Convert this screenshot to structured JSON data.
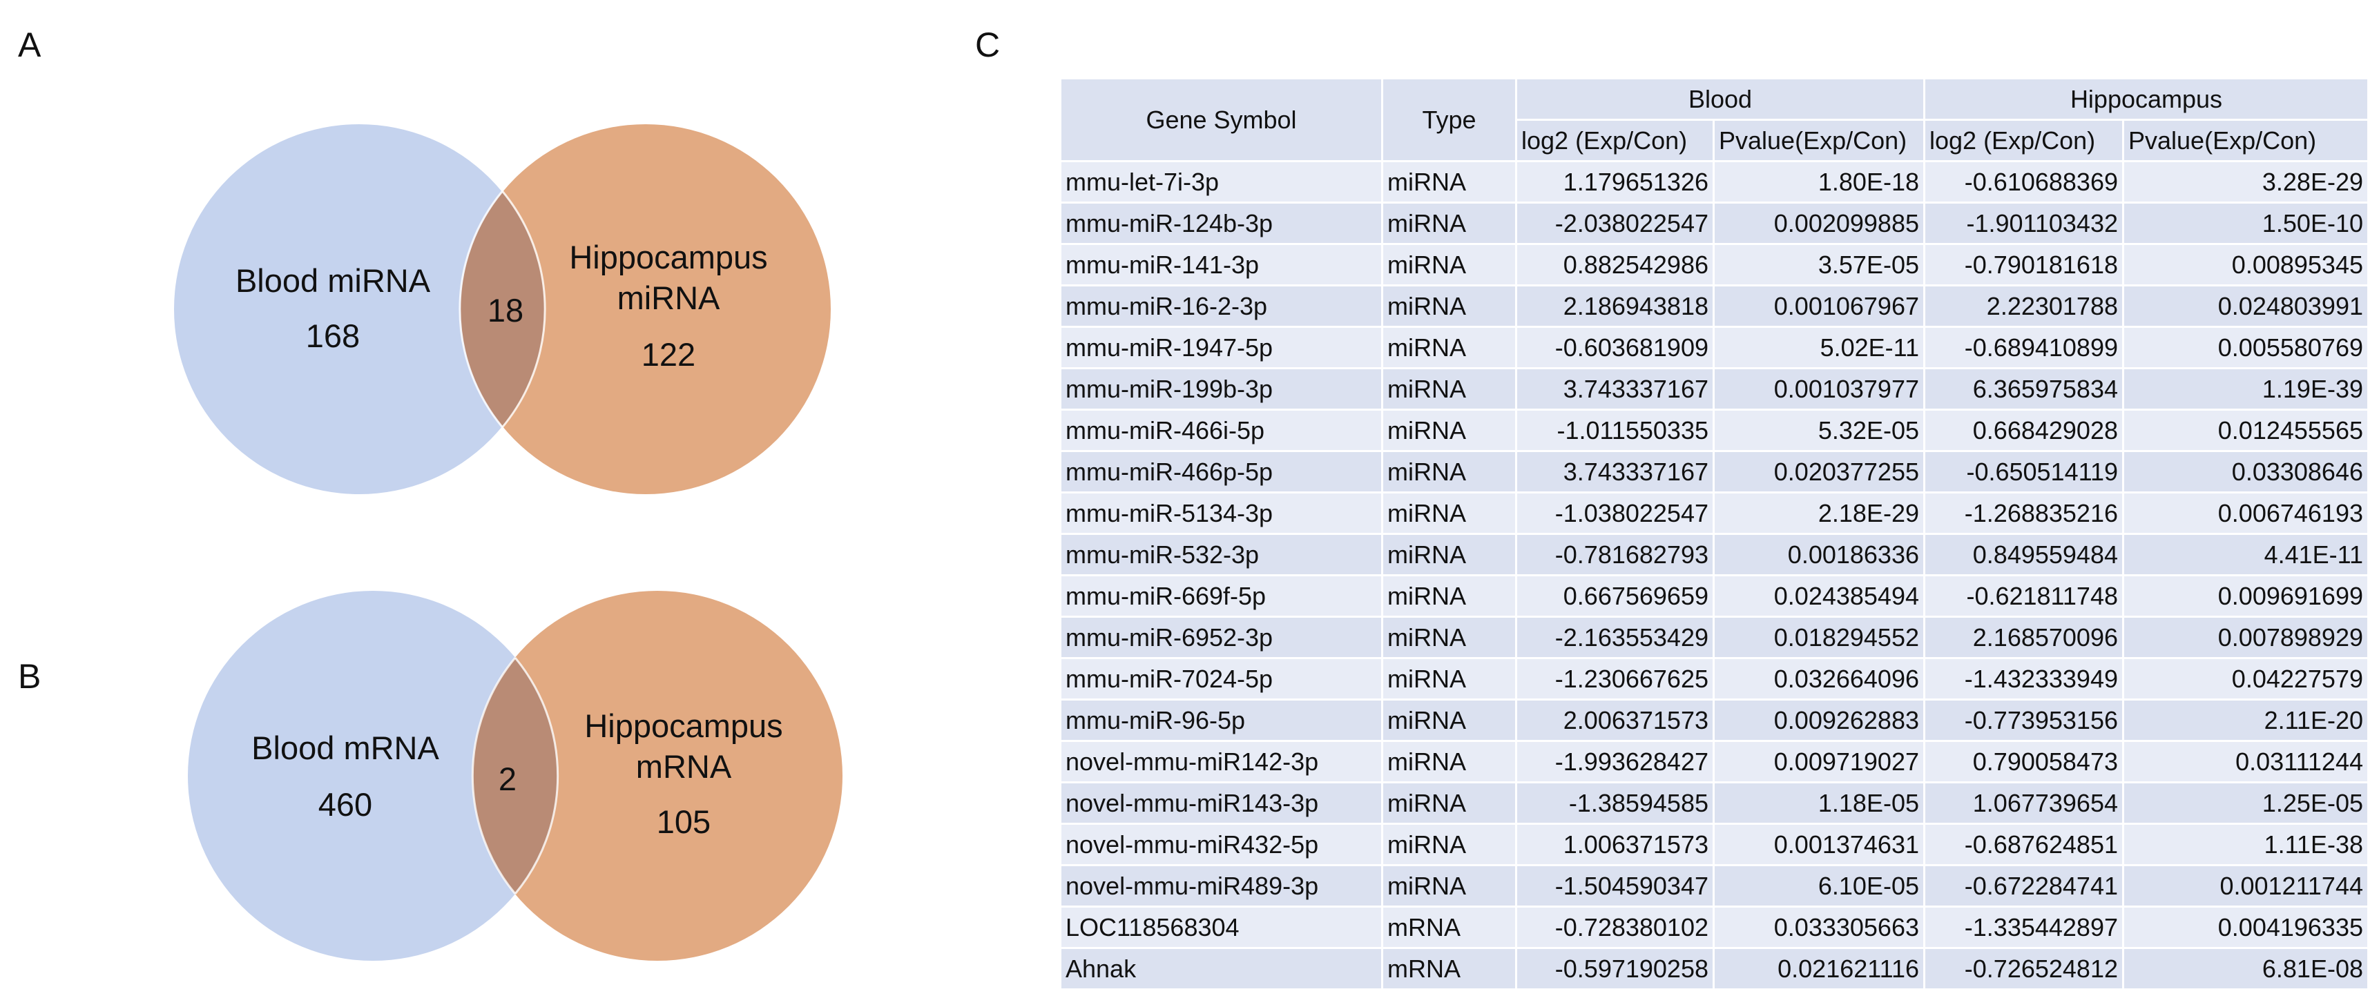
{
  "panels": {
    "a": "A",
    "b": "B",
    "c": "C"
  },
  "venn_a": {
    "left_label": "Blood miRNA",
    "left_count": "168",
    "overlap_count": "18",
    "right_label_line1": "Hippocampus",
    "right_label_line2": "miRNA",
    "right_count": "122",
    "left_color": "#c5d3ee",
    "right_color": "#e2aa82",
    "overlap_color": "#b98b75"
  },
  "venn_b": {
    "left_label": "Blood mRNA",
    "left_count": "460",
    "overlap_count": "2",
    "right_label_line1": "Hippocampus",
    "right_label_line2": "mRNA",
    "right_count": "105",
    "left_color": "#c5d3ee",
    "right_color": "#e2aa82",
    "overlap_color": "#b98b75"
  },
  "table": {
    "headers": {
      "gene": "Gene Symbol",
      "type": "Type",
      "blood": "Blood",
      "hippocampus": "Hippocampus",
      "log2": "log2 (Exp/Con)",
      "pvalue": "Pvalue(Exp/Con)"
    },
    "rows": [
      [
        "mmu-let-7i-3p",
        "miRNA",
        "1.179651326",
        "1.80E-18",
        "-0.610688369",
        "3.28E-29"
      ],
      [
        "mmu-miR-124b-3p",
        "miRNA",
        "-2.038022547",
        "0.002099885",
        "-1.901103432",
        "1.50E-10"
      ],
      [
        "mmu-miR-141-3p",
        "miRNA",
        "0.882542986",
        "3.57E-05",
        "-0.790181618",
        "0.00895345"
      ],
      [
        "mmu-miR-16-2-3p",
        "miRNA",
        "2.186943818",
        "0.001067967",
        "2.22301788",
        "0.024803991"
      ],
      [
        "mmu-miR-1947-5p",
        "miRNA",
        "-0.603681909",
        "5.02E-11",
        "-0.689410899",
        "0.005580769"
      ],
      [
        "mmu-miR-199b-3p",
        "miRNA",
        "3.743337167",
        "0.001037977",
        "6.365975834",
        "1.19E-39"
      ],
      [
        "mmu-miR-466i-5p",
        "miRNA",
        "-1.011550335",
        "5.32E-05",
        "0.668429028",
        "0.012455565"
      ],
      [
        "mmu-miR-466p-5p",
        "miRNA",
        "3.743337167",
        "0.020377255",
        "-0.650514119",
        "0.03308646"
      ],
      [
        "mmu-miR-5134-3p",
        "miRNA",
        "-1.038022547",
        "2.18E-29",
        "-1.268835216",
        "0.006746193"
      ],
      [
        "mmu-miR-532-3p",
        "miRNA",
        "-0.781682793",
        "0.00186336",
        "0.849559484",
        "4.41E-11"
      ],
      [
        "mmu-miR-669f-5p",
        "miRNA",
        "0.667569659",
        "0.024385494",
        "-0.621811748",
        "0.009691699"
      ],
      [
        "mmu-miR-6952-3p",
        "miRNA",
        "-2.163553429",
        "0.018294552",
        "2.168570096",
        "0.007898929"
      ],
      [
        "mmu-miR-7024-5p",
        "miRNA",
        "-1.230667625",
        "0.032664096",
        "-1.432333949",
        "0.04227579"
      ],
      [
        "mmu-miR-96-5p",
        "miRNA",
        "2.006371573",
        "0.009262883",
        "-0.773953156",
        "2.11E-20"
      ],
      [
        "novel-mmu-miR142-3p",
        "miRNA",
        "-1.993628427",
        "0.009719027",
        "0.790058473",
        "0.03111244"
      ],
      [
        "novel-mmu-miR143-3p",
        "miRNA",
        "-1.38594585",
        "1.18E-05",
        "1.067739654",
        "1.25E-05"
      ],
      [
        "novel-mmu-miR432-5p",
        "miRNA",
        "1.006371573",
        "0.001374631",
        "-0.687624851",
        "1.11E-38"
      ],
      [
        "novel-mmu-miR489-3p",
        "miRNA",
        "-1.504590347",
        "6.10E-05",
        "-0.672284741",
        "0.001211744"
      ],
      [
        "LOC118568304",
        "mRNA",
        "-0.728380102",
        "0.033305663",
        "-1.335442897",
        "0.004196335"
      ],
      [
        "Ahnak",
        "mRNA",
        "-0.597190258",
        "0.021621116",
        "-0.726524812",
        "6.81E-08"
      ]
    ]
  }
}
